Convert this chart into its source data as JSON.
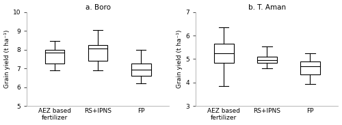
{
  "title_left": "a. Boro",
  "title_right": "b. T. Aman",
  "ylabel_left": "Grain yield (t ha⁻¹)",
  "ylabel_right": "Grain yield (t ha⁻¹)",
  "categories": [
    "AEZ based\nfertilizer",
    "RS+IPNS",
    "FP"
  ],
  "boro": {
    "whislo": [
      6.9,
      6.9,
      6.2
    ],
    "q1": [
      7.25,
      7.4,
      6.6
    ],
    "med": [
      7.85,
      8.05,
      6.95
    ],
    "q3": [
      8.0,
      8.25,
      7.25
    ],
    "whishi": [
      8.45,
      9.05,
      8.0
    ],
    "ylim": [
      5,
      10
    ],
    "yticks": [
      5,
      6,
      7,
      8,
      9,
      10
    ]
  },
  "taman": {
    "whislo": [
      3.85,
      4.6,
      3.95
    ],
    "q1": [
      4.85,
      4.85,
      4.35
    ],
    "med": [
      5.25,
      4.95,
      4.7
    ],
    "q3": [
      5.65,
      5.1,
      4.9
    ],
    "whishi": [
      6.35,
      5.55,
      5.25
    ],
    "ylim": [
      3,
      7
    ],
    "yticks": [
      3,
      4,
      5,
      6,
      7
    ]
  },
  "box_color": "white",
  "box_edgecolor": "black",
  "median_color": "black",
  "whisker_color": "black",
  "cap_color": "black",
  "linewidth": 0.8,
  "box_width": 0.45,
  "figsize": [
    5.0,
    1.83
  ],
  "dpi": 100,
  "label_fontsize": 6.5,
  "tick_fontsize": 6.5,
  "title_fontsize": 7.5,
  "bottom_spine_color": "#aaaaaa",
  "left_spine_color": "#aaaaaa"
}
